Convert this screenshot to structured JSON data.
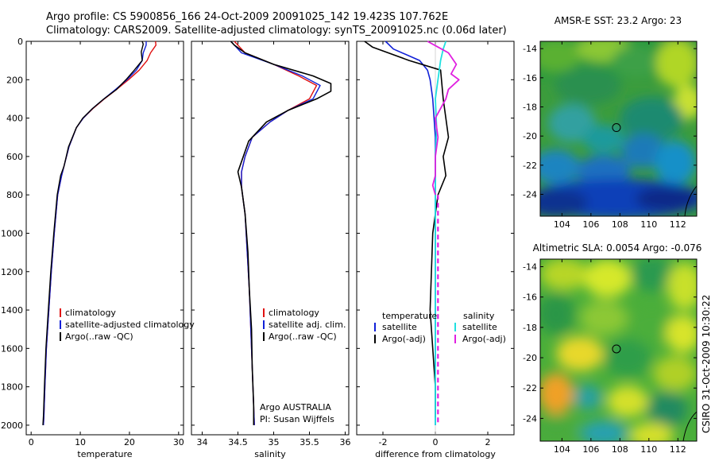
{
  "header": {
    "line1": "Argo profile: CS 5900856_166 24-Oct-2009 20091025_142 19.423S 107.762E",
    "line2": "Climatology: CARS2009. Satellite-adjusted climatology: synTS_20091025.nc (0.06d later)"
  },
  "side_stamp": "CSIRO 31-Oct-2009 10:30:22",
  "colors": {
    "climatology": "#e01010",
    "satellite": "#1020d8",
    "argo": "#000000",
    "sat_salinity": "#20e0e0",
    "argo_salinity": "#e020e0"
  },
  "chart_data": [
    {
      "type": "line",
      "xlabel": "temperature",
      "ylabel": "",
      "xlim": [
        -1,
        31
      ],
      "ylim": [
        2050,
        0
      ],
      "yreversed": true,
      "xticks": [
        0,
        10,
        20,
        30
      ],
      "yticks": [
        0,
        200,
        400,
        600,
        800,
        1000,
        1200,
        1400,
        1600,
        1800,
        2000
      ],
      "legend": {
        "placement": "lower-right",
        "entries": [
          "climatology",
          "satellite-adjusted climatology",
          "Argo(..raw -QC)"
        ]
      },
      "series": [
        {
          "name": "climatology",
          "color": "#e01010",
          "width": 1.4,
          "x": [
            25.3,
            25.4,
            24.3,
            23.6,
            22.0,
            19.8,
            17.4,
            14.9,
            12.6,
            10.6,
            9.2,
            7.7,
            6.7,
            6.2,
            5.4,
            4.7,
            4.1,
            3.6,
            3.1,
            2.8,
            2.6,
            2.5
          ],
          "y": [
            0,
            20,
            60,
            100,
            150,
            200,
            250,
            300,
            350,
            400,
            450,
            550,
            650,
            700,
            800,
            1000,
            1200,
            1400,
            1600,
            1800,
            1950,
            2000
          ]
        },
        {
          "name": "satellite-adjusted climatology",
          "color": "#1020d8",
          "width": 1.4,
          "x": [
            23.4,
            23.4,
            22.8,
            22.6,
            21.4,
            19.5,
            17.2,
            14.8,
            12.5,
            10.6,
            9.2,
            7.7,
            6.7,
            6.2,
            5.4,
            4.7,
            4.1,
            3.6,
            3.1,
            2.8,
            2.6,
            2.5
          ],
          "y": [
            0,
            20,
            60,
            100,
            150,
            200,
            250,
            300,
            350,
            400,
            450,
            550,
            650,
            700,
            800,
            1000,
            1200,
            1400,
            1600,
            1800,
            1950,
            2000
          ]
        },
        {
          "name": "Argo(..raw -QC)",
          "color": "#000000",
          "width": 1.4,
          "x": [
            22.6,
            22.8,
            22.4,
            22.6,
            21.0,
            19.3,
            17.4,
            14.8,
            12.5,
            10.5,
            9.2,
            7.6,
            6.7,
            6.0,
            5.3,
            4.6,
            4.0,
            3.5,
            3.0,
            2.7,
            2.5,
            2.4
          ],
          "y": [
            0,
            15,
            55,
            100,
            150,
            200,
            250,
            300,
            350,
            400,
            450,
            550,
            650,
            700,
            800,
            1000,
            1200,
            1400,
            1600,
            1800,
            1950,
            2000
          ]
        }
      ]
    },
    {
      "type": "line",
      "xlabel": "salinity",
      "ylabel": "",
      "xlim": [
        33.85,
        36.05
      ],
      "ylim": [
        2050,
        0
      ],
      "yreversed": true,
      "xticks": [
        34,
        34.5,
        35,
        35.5,
        36
      ],
      "xticklabels": [
        "34",
        "34.5",
        "35",
        "35.5",
        "36"
      ],
      "yticks": [
        0,
        200,
        400,
        600,
        800,
        1000,
        1200,
        1400,
        1600,
        1800,
        2000
      ],
      "legend": {
        "placement": "lower-right",
        "entries": [
          "climatology",
          "satellite adj. clim.",
          "Argo(..raw -QC)"
        ]
      },
      "notes": [
        "Argo AUSTRALIA",
        "PI: Susan Wijffels"
      ],
      "series": [
        {
          "name": "climatology",
          "color": "#e01010",
          "width": 1.4,
          "x": [
            34.45,
            34.5,
            34.6,
            35.0,
            35.35,
            35.6,
            35.5,
            35.2,
            34.95,
            34.7,
            34.6,
            34.55,
            34.55,
            34.6,
            34.63,
            34.66,
            34.68,
            34.7,
            34.72,
            34.73
          ],
          "y": [
            0,
            20,
            60,
            120,
            180,
            230,
            300,
            360,
            420,
            500,
            600,
            680,
            760,
            900,
            1100,
            1300,
            1500,
            1700,
            1900,
            2000
          ]
        },
        {
          "name": "satellite adj. clim.",
          "color": "#1020d8",
          "width": 1.4,
          "x": [
            34.4,
            34.45,
            34.55,
            35.0,
            35.4,
            35.65,
            35.55,
            35.2,
            34.95,
            34.7,
            34.6,
            34.55,
            34.55,
            34.6,
            34.63,
            34.66,
            34.68,
            34.7,
            34.72,
            34.73
          ],
          "y": [
            0,
            20,
            60,
            120,
            180,
            230,
            300,
            360,
            420,
            500,
            600,
            680,
            760,
            900,
            1100,
            1300,
            1500,
            1700,
            1900,
            2000
          ]
        },
        {
          "name": "Argo(..raw -QC)",
          "color": "#000000",
          "width": 1.6,
          "x": [
            34.4,
            34.45,
            34.6,
            35.0,
            35.55,
            35.8,
            35.8,
            35.6,
            35.2,
            34.9,
            34.65,
            34.5,
            34.55,
            34.6,
            34.64,
            34.66,
            34.69,
            34.7,
            34.72,
            34.72
          ],
          "y": [
            0,
            20,
            60,
            120,
            180,
            220,
            260,
            300,
            360,
            420,
            520,
            680,
            760,
            900,
            1100,
            1300,
            1500,
            1700,
            1900,
            2000
          ]
        }
      ]
    },
    {
      "type": "line",
      "xlabel": "difference from climatology",
      "ylabel": "",
      "xlim": [
        -3,
        3
      ],
      "ylim": [
        2050,
        0
      ],
      "yreversed": true,
      "xticks": [
        -2,
        0,
        2
      ],
      "yticks": [
        0,
        200,
        400,
        600,
        800,
        1000,
        1200,
        1400,
        1600,
        1800,
        2000
      ],
      "legend": {
        "placement": "lower-center",
        "group_titles": [
          "temperature",
          "salinity"
        ],
        "entries": [
          "satellite",
          "Argo(-adj)",
          "satellite",
          "Argo(-adj)"
        ]
      },
      "series": [
        {
          "name": "temperature satellite",
          "color": "#1020d8",
          "width": 1.6,
          "x": [
            -1.9,
            -1.6,
            -0.6,
            -0.3,
            -0.2,
            -0.1,
            0.0,
            0.0,
            0.0,
            0.0,
            0.0,
            0.0
          ],
          "y": [
            0,
            40,
            100,
            150,
            200,
            300,
            500,
            700,
            900,
            1200,
            1600,
            2000
          ]
        },
        {
          "name": "temperature Argo(-adj)",
          "color": "#000000",
          "width": 1.6,
          "x": [
            -2.7,
            -2.4,
            -1.0,
            0.2,
            0.3,
            0.4,
            0.5,
            0.3,
            0.4,
            0.1,
            0.0,
            -0.1,
            -0.2,
            -0.1,
            0.0,
            0.0
          ],
          "y": [
            0,
            30,
            100,
            150,
            300,
            400,
            500,
            600,
            700,
            800,
            900,
            1000,
            1400,
            1600,
            1800,
            1960
          ]
        },
        {
          "name": "salinity satellite",
          "color": "#20e0e0",
          "width": 1.8,
          "x": [
            0.4,
            0.3,
            0.2,
            0.1,
            0.0,
            0.05,
            0.0,
            0.0,
            0.0,
            0.0,
            0.0
          ],
          "y": [
            0,
            40,
            100,
            200,
            300,
            450,
            600,
            800,
            1000,
            1500,
            2000
          ]
        },
        {
          "name": "salinity Argo(-adj)",
          "color": "#e020e0",
          "width": 1.8,
          "x": [
            -0.3,
            0.1,
            0.5,
            0.8,
            0.6,
            0.9,
            0.5,
            0.4,
            0.0,
            0.1,
            0.0,
            0.0,
            -0.1,
            0.0
          ],
          "y": [
            0,
            30,
            60,
            120,
            170,
            200,
            250,
            300,
            400,
            500,
            600,
            700,
            750,
            800
          ]
        },
        {
          "name": "salinity Argo(-adj) deep",
          "color": "#e020e0",
          "width": 2.2,
          "dashed": true,
          "x": [
            0.1,
            0.1,
            0.1,
            0.1,
            0.1
          ],
          "y": [
            800,
            1200,
            1500,
            1800,
            2000
          ]
        }
      ]
    },
    {
      "type": "heatmap",
      "title": "AMSR-E SST: 23.2 Argo: 23",
      "xlim": [
        102.5,
        113.3
      ],
      "ylim": [
        -25.5,
        -13.5
      ],
      "xticks": [
        104,
        106,
        108,
        110,
        112
      ],
      "yticks": [
        -14,
        -16,
        -18,
        -20,
        -22,
        -24
      ],
      "marker": {
        "x": 107.76,
        "y": -19.42
      }
    },
    {
      "type": "heatmap",
      "title": "Altimetric SLA: 0.0054 Argo: -0.076",
      "xlim": [
        102.5,
        113.3
      ],
      "ylim": [
        -25.5,
        -13.5
      ],
      "xticks": [
        104,
        106,
        108,
        110,
        112
      ],
      "yticks": [
        -14,
        -16,
        -18,
        -20,
        -22,
        -24
      ],
      "marker": {
        "x": 107.76,
        "y": -19.42
      }
    }
  ]
}
